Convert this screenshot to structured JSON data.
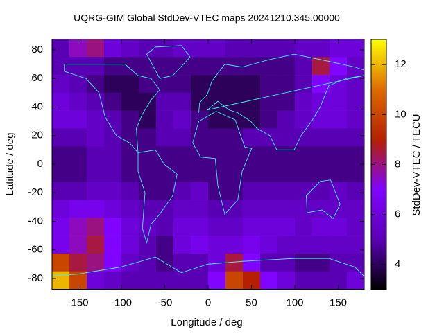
{
  "chart_data": {
    "type": "heatmap",
    "title": "UQRG-GIM Global StdDev-VTEC maps 20241210.345.00000",
    "x_label": "Longitude / deg",
    "y_label": "Latitude / deg",
    "colorbar_label": "StdDev-VTEC / TECU",
    "xlim": [
      -180,
      180
    ],
    "xticks": [
      -150,
      -100,
      -50,
      0,
      50,
      100,
      150
    ],
    "ylim": [
      -87.5,
      87.5
    ],
    "yticks": [
      -80,
      -60,
      -40,
      -20,
      0,
      20,
      40,
      60,
      80
    ],
    "cblim": [
      3,
      13
    ],
    "cbticks": [
      4,
      6,
      8,
      10,
      12
    ],
    "colormap": [
      "#000000",
      "#5a00b4",
      "#8004ff",
      "#b42000",
      "#dd6b00",
      "#ffff00"
    ],
    "xbins": [
      -180,
      -160,
      -140,
      -120,
      -100,
      -80,
      -60,
      -40,
      -20,
      0,
      20,
      40,
      60,
      80,
      100,
      120,
      140,
      160,
      180
    ],
    "ybins": [
      87.5,
      75,
      62.5,
      50,
      37.5,
      25,
      12.5,
      0,
      -12.5,
      -25,
      -37.5,
      -50,
      -62.5,
      -75,
      -87.5
    ],
    "z": [
      [
        5,
        7.5,
        8,
        6,
        5.5,
        5,
        5,
        5.5,
        5.5,
        5.5,
        5,
        5,
        5,
        5,
        5.5,
        5.5,
        6,
        6
      ],
      [
        5,
        5,
        5,
        4.5,
        4.5,
        4.5,
        4.5,
        4.5,
        4.5,
        4.5,
        4.5,
        4.5,
        4.5,
        4.5,
        5,
        8.5,
        7,
        5.5
      ],
      [
        5.5,
        5,
        4.5,
        4,
        4,
        4.5,
        4.5,
        4.5,
        4,
        4,
        4,
        4,
        4.5,
        4.5,
        5,
        7,
        6,
        5.5
      ],
      [
        6,
        5.5,
        5,
        4.5,
        4,
        4,
        5,
        5,
        4,
        4,
        4,
        4,
        4.5,
        4.5,
        5.5,
        6,
        6,
        5.5
      ],
      [
        6,
        6,
        5.5,
        5,
        4.5,
        4,
        5,
        5.5,
        4.5,
        4,
        4,
        4,
        4.5,
        5,
        5.5,
        6,
        6,
        5.5
      ],
      [
        5,
        5,
        5.5,
        5,
        4.5,
        4.5,
        5,
        5,
        4.5,
        4.5,
        4.5,
        5,
        5,
        5,
        5,
        5,
        5,
        5
      ],
      [
        4.5,
        4.5,
        5,
        5,
        4.5,
        4.5,
        4.5,
        4.5,
        4.5,
        4.5,
        4.5,
        4.5,
        4.5,
        4.5,
        4.5,
        4.5,
        4.5,
        4.5
      ],
      [
        4.5,
        4.5,
        5,
        5,
        4.5,
        4.5,
        4.5,
        4.5,
        4.5,
        4.5,
        4.5,
        4.5,
        4.5,
        4.5,
        4.5,
        4.5,
        4.5,
        4.5
      ],
      [
        5,
        5,
        5.5,
        5.5,
        5,
        4.5,
        4.5,
        5,
        5.5,
        4.5,
        4.5,
        5,
        5,
        5,
        5,
        5,
        5.5,
        5
      ],
      [
        6,
        6.5,
        6.5,
        6,
        5.5,
        5,
        5,
        5.5,
        5.5,
        5,
        5,
        5.5,
        5.5,
        5.5,
        5.5,
        5.5,
        5.5,
        5.5
      ],
      [
        6.5,
        7.5,
        8,
        7,
        6,
        5.5,
        5,
        6,
        6,
        5.5,
        5.5,
        6,
        6,
        6,
        5.5,
        6,
        6,
        5.5
      ],
      [
        6.5,
        7.5,
        8.5,
        7,
        6,
        5,
        4.5,
        6,
        6.5,
        6,
        6,
        6.5,
        6,
        5.5,
        5.5,
        5.5,
        5.5,
        5.5
      ],
      [
        10,
        8.5,
        8,
        7,
        5.5,
        5,
        4.5,
        5,
        5,
        6,
        8.5,
        7,
        5,
        5,
        4.5,
        4.5,
        5,
        5
      ],
      [
        12,
        10,
        6,
        5.5,
        5,
        5,
        5,
        5,
        5,
        7,
        10,
        9,
        7,
        6,
        5,
        5,
        5,
        6
      ]
    ]
  }
}
